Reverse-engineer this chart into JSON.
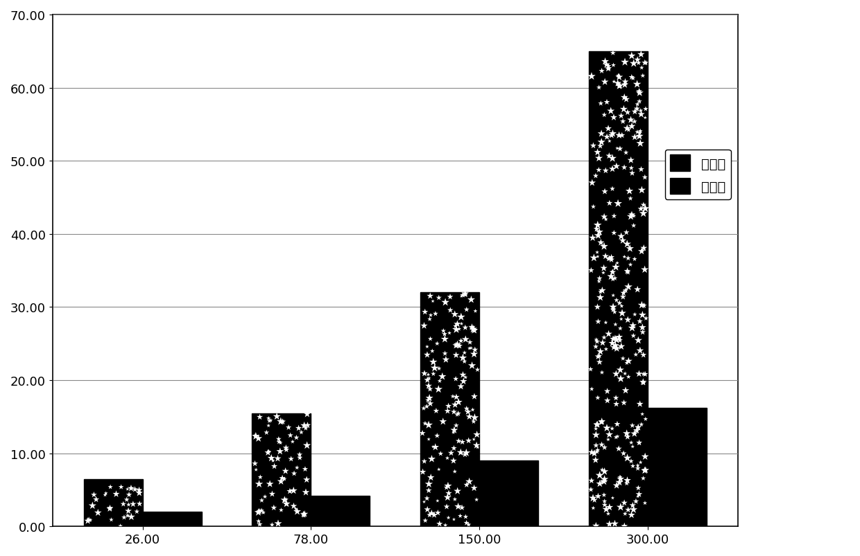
{
  "categories": [
    "26.00",
    "78.00",
    "150.00",
    "300.00"
  ],
  "series1_label": "本发明",
  "series2_label": "对照组",
  "series1_values": [
    6.5,
    15.5,
    32.0,
    65.0
  ],
  "series2_values": [
    2.0,
    4.2,
    9.0,
    16.2
  ],
  "ylim": [
    0,
    70
  ],
  "yticks": [
    0.0,
    10.0,
    20.0,
    30.0,
    40.0,
    50.0,
    60.0,
    70.0
  ],
  "bar_width": 0.35,
  "background_color": "#ffffff",
  "grid_color": "#888888",
  "font_size_axis": 13,
  "font_size_legend": 13,
  "legend_fontsize": 14
}
